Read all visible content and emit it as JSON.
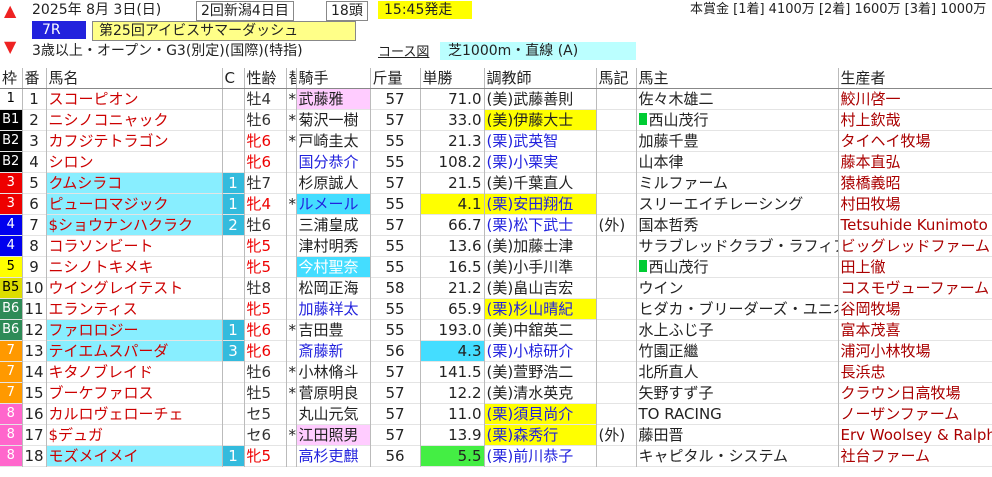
{
  "header": {
    "date": "2025年 8月 3日(日)",
    "kaisai": "2回新潟4日目",
    "heads": "18頭",
    "post_time": "15:45発走",
    "prize": "本賞金 [1着] 4100万 [2着] 1600万 [3着] 1000万",
    "race_no": "7R",
    "race_name": "第25回アイビスサマーダッシュ",
    "conditions": "3歳以上・オープン・G3(別定)(国際)(特指)",
    "course_link": "コース図",
    "course": "芝1000m・直線 (A)"
  },
  "table": {
    "columns": [
      "枠",
      "番",
      "馬名",
      "C",
      "性齢",
      "替",
      "騎手",
      "斤量",
      "単勝",
      "調教師",
      "馬記",
      "馬主",
      "生産者"
    ],
    "rows": [
      [
        "1",
        "1",
        "スコーピオン",
        null,
        "牡4",
        "*",
        "武藤雅",
        "57",
        "71.0",
        "(美)武藤善則",
        null,
        "佐々木雄二",
        "鮫川啓一"
      ],
      [
        "B1",
        "2",
        "ニシノコニャック",
        null,
        "牡6",
        "*",
        "菊沢一樹",
        "57",
        "33.0",
        "(美)伊藤大士",
        null,
        "西山茂行",
        "村上欽哉"
      ],
      [
        "B2",
        "3",
        "カフジテトラゴン",
        null,
        "牝6",
        "*",
        "戸崎圭太",
        "55",
        "21.3",
        "(栗)武英智",
        null,
        "加藤千豊",
        "タイヘイ牧場"
      ],
      [
        "B2",
        "4",
        "シロン",
        null,
        "牝6",
        null,
        "国分恭介",
        "55",
        "108.2",
        "(栗)小栗実",
        null,
        "山本律",
        "藤本直弘"
      ],
      [
        "3",
        "5",
        "クムシラコ",
        "1",
        "牡7",
        null,
        "杉原誠人",
        "57",
        "21.5",
        "(美)千葉直人",
        null,
        "ミルファーム",
        "猿橋義昭"
      ],
      [
        "3",
        "6",
        "ピューロマジック",
        "1",
        "牝4",
        "*",
        "ルメール",
        "55",
        "4.1",
        "(栗)安田翔伍",
        null,
        "スリーエイチレーシング",
        "村田牧場"
      ],
      [
        "4",
        "7",
        "$ショウナンハクラク",
        "2",
        "牡6",
        null,
        "三浦皇成",
        "57",
        "66.7",
        "(栗)松下武士",
        "(外)",
        "国本哲秀",
        "Tetsuhide Kunimoto"
      ],
      [
        "4",
        "8",
        "コラソンビート",
        null,
        "牝5",
        null,
        "津村明秀",
        "55",
        "13.6",
        "(美)加藤士津",
        null,
        "サラブレッドクラブ・ラフィアン",
        "ビッグレッドファーム"
      ],
      [
        "5",
        "9",
        "ニシノトキメキ",
        null,
        "牝5",
        null,
        "今村聖奈",
        "55",
        "16.5",
        "(美)小手川準",
        null,
        "西山茂行",
        "田上徹"
      ],
      [
        "B5",
        "10",
        "ウイングレイテスト",
        null,
        "牡8",
        null,
        "松岡正海",
        "58",
        "21.2",
        "(美)畠山吉宏",
        null,
        "ウイン",
        "コスモヴューファーム"
      ],
      [
        "B6",
        "11",
        "エランティス",
        null,
        "牝5",
        null,
        "加藤祥太",
        "55",
        "65.9",
        "(栗)杉山晴紀",
        null,
        "ヒダカ・ブリーダーズ・ユニオン",
        "谷岡牧場"
      ],
      [
        "B6",
        "12",
        "ファロロジー",
        "1",
        "牝6",
        "*",
        "吉田豊",
        "55",
        "193.0",
        "(美)中舘英二",
        null,
        "水上ふじ子",
        "富本茂喜"
      ],
      [
        "7",
        "13",
        "テイエムスパーダ",
        "3",
        "牝6",
        null,
        "斎藤新",
        "56",
        "4.3",
        "(栗)小椋研介",
        null,
        "竹園正繼",
        "浦河小林牧場"
      ],
      [
        "7",
        "14",
        "キタノブレイド",
        null,
        "牡6",
        "*",
        "小林脩斗",
        "57",
        "141.5",
        "(美)萱野浩二",
        null,
        "北所直人",
        "長浜忠"
      ],
      [
        "7",
        "15",
        "ブーケファロス",
        null,
        "牡5",
        "*",
        "菅原明良",
        "57",
        "12.2",
        "(美)清水英克",
        null,
        "矢野すず子",
        "クラウン日高牧場"
      ],
      [
        "8",
        "16",
        "カルロヴェローチェ",
        null,
        "セ5",
        null,
        "丸山元気",
        "57",
        "11.0",
        "(栗)須貝尚介",
        null,
        "TO RACING",
        "ノーザンファーム"
      ],
      [
        "8",
        "17",
        "$デュガ",
        null,
        "セ6",
        "*",
        "江田照男",
        "57",
        "13.9",
        "(栗)森秀行",
        "(外)",
        "藤田晋",
        "Erv Woolsey & Ralph"
      ],
      [
        "8",
        "18",
        "モズメイメイ",
        "1",
        "牝5",
        null,
        "高杉吏麒",
        "56",
        "5.5",
        "(栗)前川恭子",
        null,
        "キャピタル・システム",
        "社台ファーム"
      ]
    ]
  }
}
